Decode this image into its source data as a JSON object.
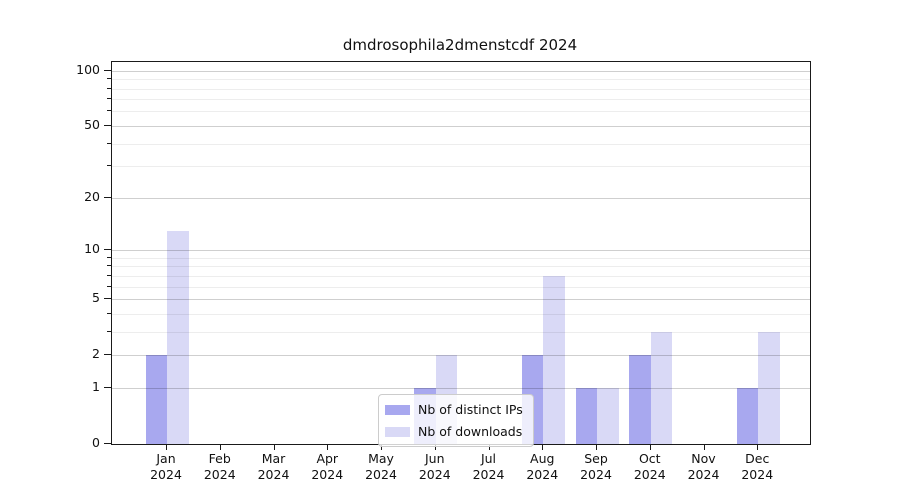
{
  "chart_data": {
    "type": "bar",
    "title": "dmdrosophila2dmenstcdf 2024",
    "categories": [
      "Jan 2024",
      "Feb 2024",
      "Mar 2024",
      "Apr 2024",
      "May 2024",
      "Jun 2024",
      "Jul 2024",
      "Aug 2024",
      "Sep 2024",
      "Oct 2024",
      "Nov 2024",
      "Dec 2024"
    ],
    "series": [
      {
        "name": "Nb of distinct IPs",
        "color": "#a8a8ef",
        "values": [
          2,
          0,
          0,
          0,
          0,
          1,
          0,
          2,
          1,
          2,
          0,
          1
        ]
      },
      {
        "name": "Nb of downloads",
        "color": "#d9d9f6",
        "values": [
          13,
          0,
          0,
          0,
          0,
          2,
          0,
          7,
          1,
          3,
          0,
          3
        ]
      }
    ],
    "yscale": "log1p",
    "ylim": [
      0,
      109
    ],
    "yticks": [
      0,
      1,
      2,
      5,
      10,
      20,
      50,
      100
    ],
    "yticks_minor": [
      3,
      4,
      6,
      7,
      8,
      9,
      30,
      40,
      60,
      70,
      80,
      90
    ],
    "xlabel": "",
    "ylabel": "",
    "grid": "horizontal",
    "legend_position": "lower center"
  }
}
